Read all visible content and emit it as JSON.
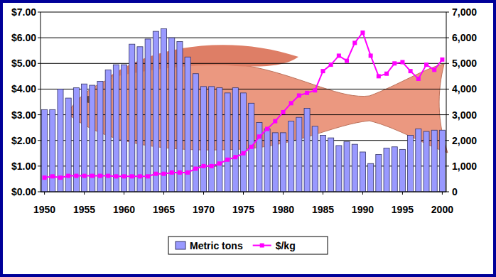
{
  "chart_data": {
    "type": "bar",
    "categories": [
      1950,
      null,
      null,
      null,
      null,
      1955,
      null,
      null,
      null,
      null,
      1960,
      null,
      null,
      null,
      null,
      1965,
      null,
      null,
      null,
      null,
      1970,
      null,
      null,
      null,
      null,
      1975,
      null,
      null,
      null,
      null,
      1980,
      null,
      null,
      null,
      null,
      1985,
      null,
      null,
      null,
      null,
      1990,
      null,
      null,
      null,
      null,
      1995,
      null,
      null,
      null,
      null,
      2000
    ],
    "series": [
      {
        "name": "Metric tons",
        "type": "bar",
        "axis": "y2",
        "color": "#9999ff",
        "values": [
          3200,
          3200,
          4000,
          3650,
          4050,
          4200,
          4150,
          4300,
          4750,
          4950,
          4950,
          5750,
          5650,
          5950,
          6250,
          6350,
          6000,
          5850,
          5250,
          4600,
          4100,
          4100,
          4050,
          3850,
          4050,
          3850,
          3450,
          2700,
          2450,
          2300,
          2300,
          2750,
          2900,
          3250,
          2550,
          2200,
          2100,
          1800,
          1950,
          1850,
          1550,
          1100,
          1450,
          1700,
          1750,
          1650,
          2200,
          2450,
          2350,
          2400,
          2400
        ]
      },
      {
        "name": "$/kg",
        "type": "line",
        "axis": "y",
        "color": "#ff00ff",
        "marker": "square",
        "line_style": "solid",
        "values": [
          0.55,
          0.6,
          0.55,
          0.62,
          0.62,
          0.62,
          0.62,
          0.62,
          0.62,
          0.6,
          0.6,
          0.6,
          0.6,
          0.6,
          0.7,
          0.7,
          0.75,
          0.75,
          0.75,
          0.9,
          1.0,
          1.0,
          1.1,
          1.25,
          1.35,
          1.5,
          1.75,
          2.15,
          2.45,
          2.75,
          3.1,
          3.45,
          3.75,
          3.85,
          3.95,
          4.7,
          4.95,
          5.3,
          5.1,
          5.8,
          6.2,
          5.3,
          4.5,
          4.6,
          5.0,
          5.05,
          4.7,
          4.4,
          4.95,
          4.75,
          5.15
        ]
      }
    ],
    "ylim": [
      0,
      7
    ],
    "yticks": [
      {
        "value": 0,
        "label": "$0.00"
      },
      {
        "value": 1,
        "label": "$1.00"
      },
      {
        "value": 2,
        "label": "$2.00"
      },
      {
        "value": 3,
        "label": "$3.00"
      },
      {
        "value": 4,
        "label": "$4.00"
      },
      {
        "value": 5,
        "label": "$5.00"
      },
      {
        "value": 6,
        "label": "$6.00"
      },
      {
        "value": 7,
        "label": "$7.00"
      }
    ],
    "y2lim": [
      0,
      7000
    ],
    "y2ticks": [
      0,
      {
        "value": 1000,
        "label": "1,000"
      },
      {
        "value": 2000,
        "label": "2,000"
      },
      {
        "value": 3000,
        "label": "3,000"
      },
      {
        "value": 4000,
        "label": "4,000"
      },
      {
        "value": 5000,
        "label": "5,000"
      },
      {
        "value": 6000,
        "label": "6,000"
      },
      {
        "value": 7000,
        "label": "7,000"
      }
    ],
    "grid": true,
    "legend": "bottom"
  }
}
